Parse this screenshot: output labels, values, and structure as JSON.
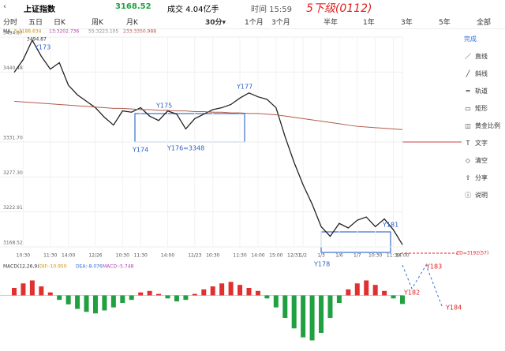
{
  "header": {
    "name": "上证指数",
    "price": "3168.52",
    "volume": "成交 4.04亿手",
    "time": "时间 15:59",
    "note": "5下级(0112)"
  },
  "tabs": [
    "分时",
    "五日",
    "日K",
    "周K",
    "月K",
    "30分▾",
    "1个月",
    "3个月",
    "半年",
    "1年",
    "3年",
    "5年",
    "全部"
  ],
  "toolbar": [
    "完成",
    "直线",
    "斜线",
    "轨道",
    "矩形",
    "黄金比例",
    "文字",
    "清空",
    "分享",
    "说明"
  ],
  "chart_data": [
    {
      "type": "line",
      "legend": [
        "MA",
        "5:3188.634",
        "13:3202.736",
        "55:3223.105",
        "233:3350.988"
      ],
      "annotations": [
        "Y173",
        "Y174",
        "Y175",
        "Y176=3348",
        "Y177",
        "Y178",
        "Y181",
        "Y182",
        "Y183",
        "Y184",
        "ZD=3192(57)",
        "3494.87"
      ],
      "categories": [
        null,
        "10:30",
        null,
        null,
        "11:30",
        null,
        "14:00",
        null,
        null,
        "12/26",
        null,
        null,
        "10:30",
        null,
        "11:30",
        null,
        null,
        "14:00",
        null,
        null,
        "12/23",
        null,
        "10:30",
        null,
        null,
        "11:30",
        null,
        "14:00",
        null,
        "15:00",
        null,
        "12/31",
        "1/2",
        null,
        "1/3",
        null,
        "1/6",
        null,
        "1/7",
        null,
        "10:30",
        null,
        "11:30",
        "14:00"
      ],
      "series": [
        {
          "color": "#222222",
          "values": [
            3440,
            3460,
            3490,
            3465,
            3445,
            3455,
            3420,
            3405,
            3395,
            3385,
            3370,
            3358,
            3380,
            3378,
            3385,
            3372,
            3365,
            3380,
            3375,
            3352,
            3368,
            3375,
            3382,
            3385,
            3390,
            3400,
            3408,
            3402,
            3398,
            3385,
            3340,
            3300,
            3265,
            3235,
            3200,
            3185,
            3205,
            3198,
            3210,
            3215,
            3200,
            3212,
            3195,
            3172
          ]
        },
        {
          "color": "#b25b4b",
          "values": [
            3395,
            3394,
            3393,
            3392,
            3391,
            3390,
            3389,
            3388,
            3387,
            3386,
            3385,
            3384,
            3384,
            3383,
            3382,
            3382,
            3381,
            3381,
            3380,
            3380,
            3379,
            3379,
            3378,
            3378,
            3377,
            3377,
            3376,
            3376,
            3375,
            3374,
            3372,
            3370,
            3368,
            3366,
            3364,
            3362,
            3360,
            3358,
            3356,
            3355,
            3354,
            3353,
            3352,
            3351
          ]
        }
      ],
      "ylim": [
        3168.52,
        3494.87
      ],
      "yticks": [
        {
          "value": 3494.87,
          "label": "3494.87"
        },
        {
          "value": 3440.48,
          "label": "3440.48"
        },
        {
          "value": 3331.7,
          "label": "3331.70"
        },
        {
          "value": 3277.3,
          "label": "3277.30"
        },
        {
          "value": 3222.91,
          "label": "3222.91"
        },
        {
          "value": 3168.52,
          "label": "3168.52"
        }
      ],
      "grid": true
    },
    {
      "type": "bar",
      "legend": [
        "MACD(12,26,9)",
        "DIF:-10.950",
        "DEA:-8.076",
        "MACD:-5.748"
      ],
      "up_color": "#e03030",
      "down_color": "#20a040",
      "values": [
        5,
        8,
        10,
        6,
        2,
        -3,
        -6,
        -9,
        -11,
        -12,
        -10,
        -8,
        -5,
        -3,
        2,
        3,
        1,
        -2,
        -4,
        -3,
        1,
        4,
        6,
        8,
        9,
        7,
        5,
        3,
        -2,
        -8,
        -15,
        -22,
        -28,
        -30,
        -25,
        -15,
        -5,
        4,
        8,
        10,
        7,
        3,
        -2,
        -5.748
      ],
      "ylim": [
        -35,
        15
      ]
    }
  ]
}
